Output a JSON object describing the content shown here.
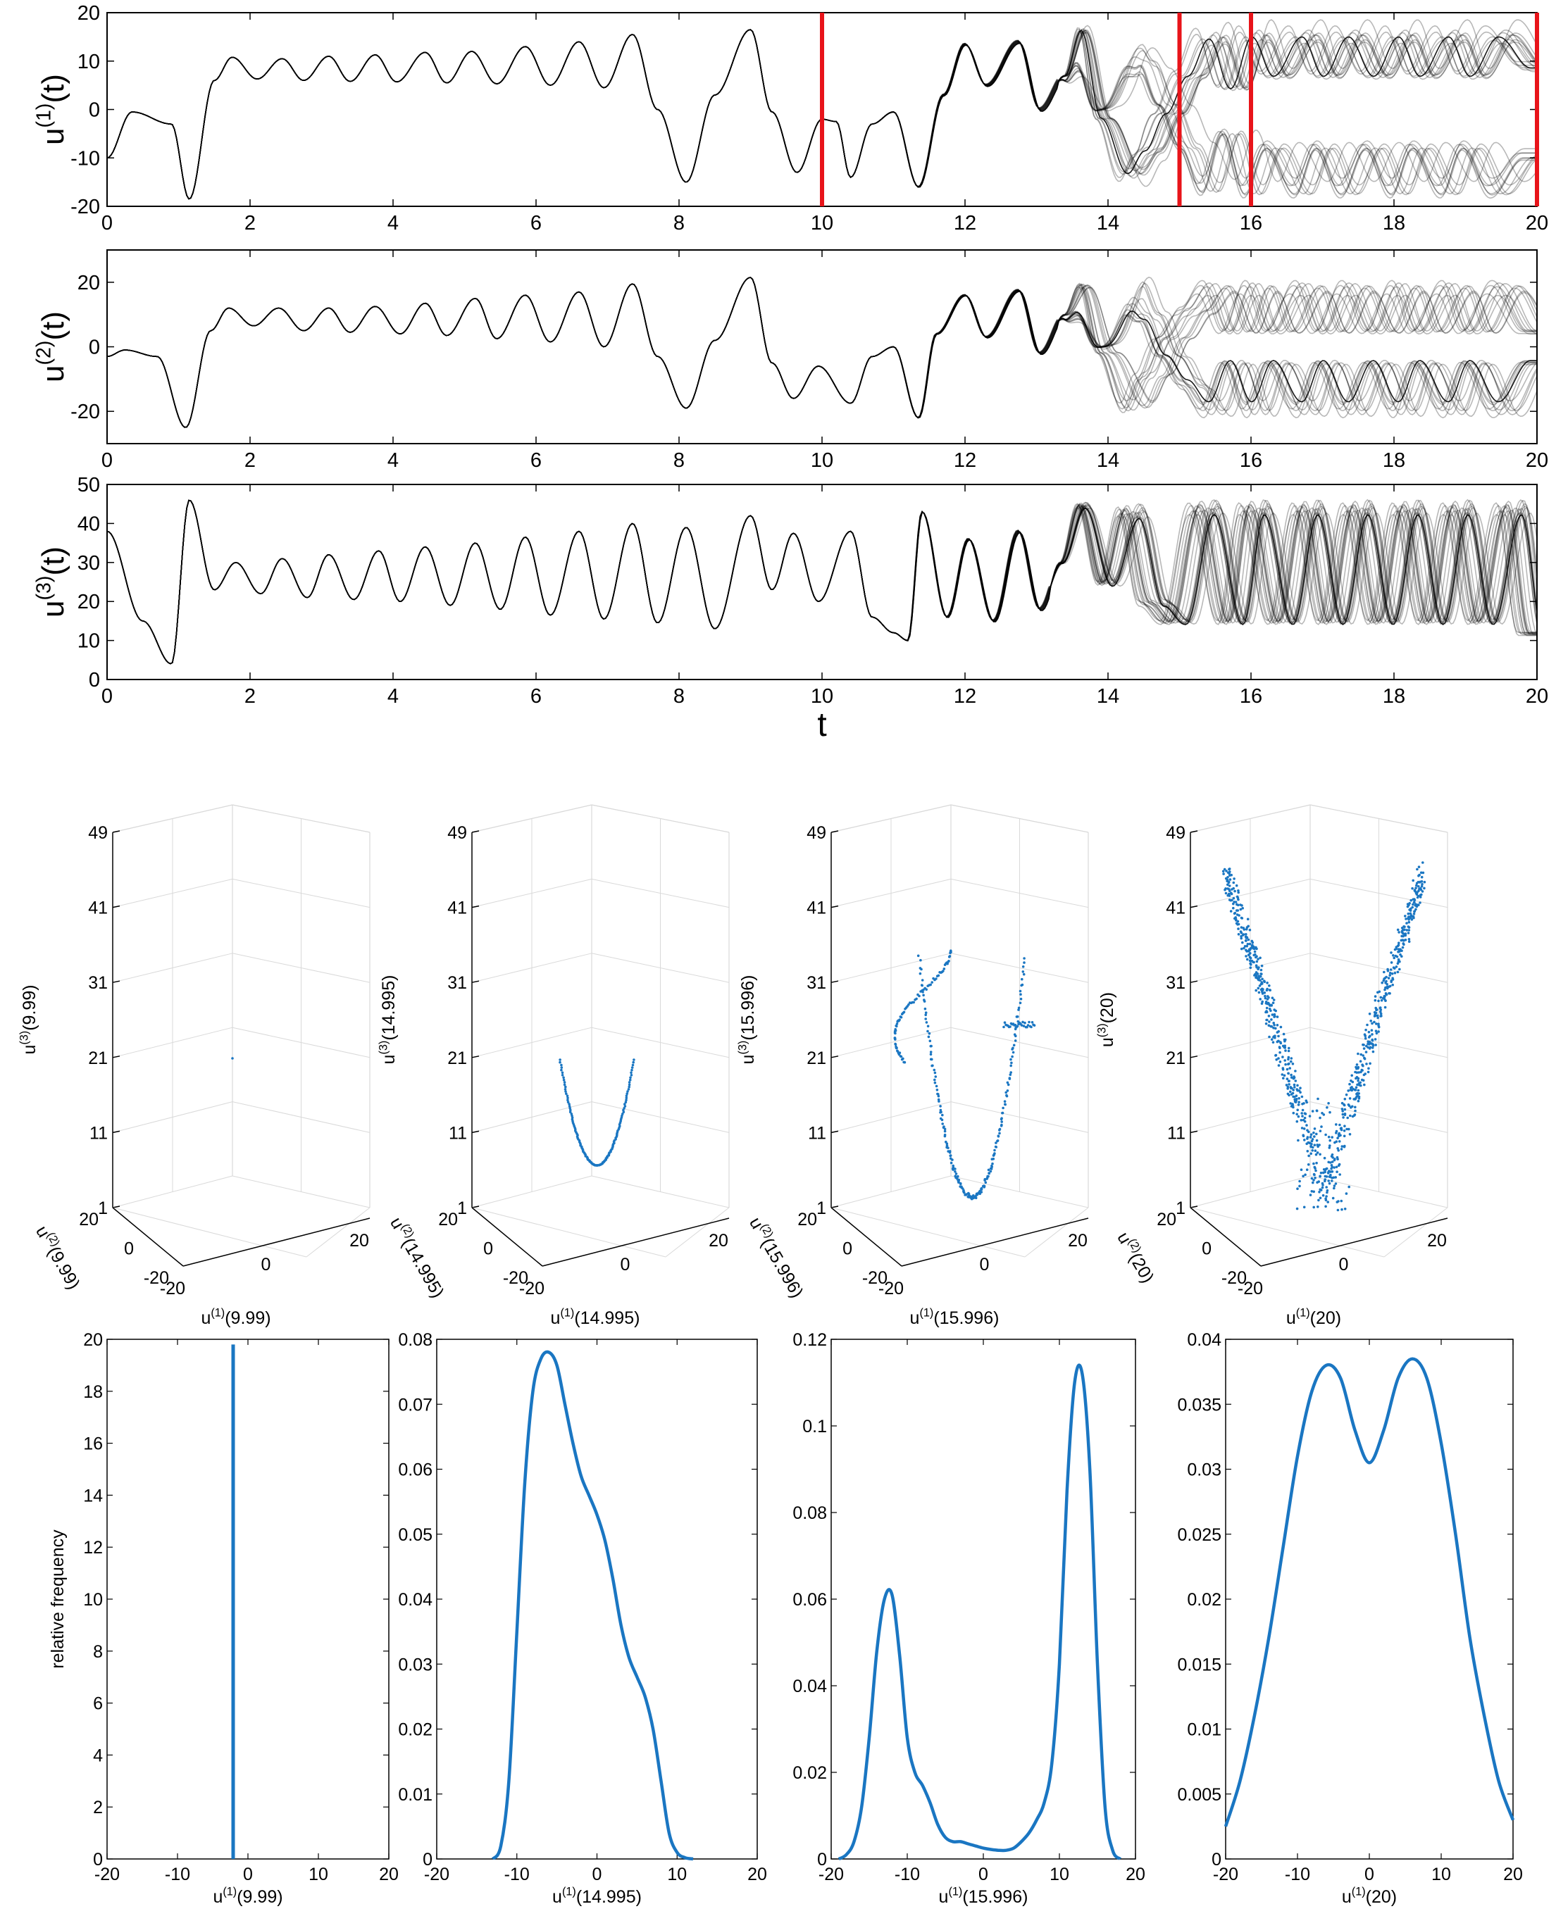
{
  "colors": {
    "trajectory": "#000000",
    "marker": "#e8141a",
    "scatter": "#1a76c2",
    "density": "#1a76c2",
    "axis": "#000000",
    "grid3d": "#d9d9d9"
  },
  "marker_times": [
    10,
    15,
    16,
    20
  ],
  "chart_data": [
    {
      "id": "ts-u1",
      "type": "line",
      "description_visual": "ensemble of trajectories, spread increases after t ~ 13",
      "ylabel_base": "u",
      "ylabel_sup": "(1)",
      "ylabel_tail": "(t)",
      "xlim": [
        0,
        20
      ],
      "ylim": [
        -20,
        20
      ],
      "xticks": [
        "0",
        "2",
        "4",
        "6",
        "8",
        "10",
        "12",
        "14",
        "16",
        "18",
        "20"
      ],
      "yticks": [
        "-20",
        "-10",
        "0",
        "10",
        "20"
      ],
      "peaks": [
        [
          0,
          -10
        ],
        [
          0.35,
          -0.5
        ],
        [
          0.9,
          -3
        ],
        [
          1.15,
          -18.5
        ],
        [
          1.5,
          6
        ],
        [
          1.75,
          10.8
        ],
        [
          2.1,
          6.3
        ],
        [
          2.45,
          10.5
        ],
        [
          2.75,
          6
        ],
        [
          3.1,
          11
        ],
        [
          3.4,
          5.8
        ],
        [
          3.75,
          11.3
        ],
        [
          4.05,
          5.7
        ],
        [
          4.45,
          11.8
        ],
        [
          4.75,
          5.5
        ],
        [
          5.1,
          12
        ],
        [
          5.45,
          5.3
        ],
        [
          5.85,
          13
        ],
        [
          6.2,
          5
        ],
        [
          6.6,
          14
        ],
        [
          6.95,
          4.5
        ],
        [
          7.35,
          15.5
        ],
        [
          7.7,
          0
        ],
        [
          8.1,
          -15
        ],
        [
          8.5,
          3
        ],
        [
          9.0,
          16.5
        ],
        [
          9.3,
          -0.5
        ],
        [
          9.65,
          -13
        ],
        [
          10.0,
          -2
        ],
        [
          10.2,
          -2.5
        ],
        [
          10.4,
          -14
        ],
        [
          10.7,
          -3
        ],
        [
          11.0,
          -0.5
        ],
        [
          11.35,
          -16
        ],
        [
          11.7,
          3
        ],
        [
          12.0,
          13.5
        ],
        [
          12.3,
          5
        ],
        [
          12.75,
          14
        ],
        [
          13.05,
          0
        ],
        [
          13.4,
          7
        ],
        [
          13.65,
          17
        ],
        [
          13.95,
          -2
        ],
        [
          14.35,
          -15
        ],
        [
          14.6,
          -10
        ],
        [
          14.9,
          -1
        ],
        [
          15.2,
          8
        ],
        [
          15.5,
          17
        ],
        [
          15.8,
          5
        ],
        [
          16.1,
          17.5
        ],
        [
          16.4,
          8
        ],
        [
          16.8,
          17.5
        ],
        [
          17.1,
          8
        ],
        [
          17.45,
          17.5
        ],
        [
          17.8,
          8
        ],
        [
          18.15,
          17.5
        ],
        [
          18.45,
          8
        ],
        [
          18.85,
          17.5
        ],
        [
          19.15,
          8
        ],
        [
          19.55,
          17.5
        ],
        [
          20,
          10
        ]
      ],
      "spread_start": 13.3,
      "spread_amplitude": 18,
      "marker_lines": true
    },
    {
      "id": "ts-u2",
      "type": "line",
      "ylabel_base": "u",
      "ylabel_sup": "(2)",
      "ylabel_tail": "(t)",
      "xlim": [
        0,
        20
      ],
      "ylim": [
        -30,
        30
      ],
      "xticks": [
        "0",
        "2",
        "4",
        "6",
        "8",
        "10",
        "12",
        "14",
        "16",
        "18",
        "20"
      ],
      "yticks": [
        "-20",
        "0",
        "20"
      ],
      "peaks": [
        [
          0,
          -3
        ],
        [
          0.25,
          -1
        ],
        [
          0.7,
          -3
        ],
        [
          1.1,
          -25
        ],
        [
          1.45,
          5
        ],
        [
          1.7,
          12
        ],
        [
          2.05,
          6.5
        ],
        [
          2.4,
          12
        ],
        [
          2.75,
          5
        ],
        [
          3.1,
          12
        ],
        [
          3.4,
          4.5
        ],
        [
          3.75,
          12.5
        ],
        [
          4.1,
          4
        ],
        [
          4.45,
          13.5
        ],
        [
          4.75,
          3.5
        ],
        [
          5.15,
          15
        ],
        [
          5.45,
          2.5
        ],
        [
          5.85,
          16
        ],
        [
          6.2,
          1.5
        ],
        [
          6.6,
          17
        ],
        [
          6.95,
          0
        ],
        [
          7.35,
          19.5
        ],
        [
          7.7,
          -3
        ],
        [
          8.1,
          -19
        ],
        [
          8.5,
          2
        ],
        [
          9.0,
          21.5
        ],
        [
          9.3,
          -5
        ],
        [
          9.6,
          -16
        ],
        [
          9.95,
          -6
        ],
        [
          10.4,
          -17.5
        ],
        [
          10.7,
          -3
        ],
        [
          11.0,
          0
        ],
        [
          11.35,
          -22
        ],
        [
          11.6,
          4
        ],
        [
          12.0,
          16
        ],
        [
          12.3,
          3
        ],
        [
          12.75,
          17.5
        ],
        [
          13.05,
          -2
        ],
        [
          13.4,
          10
        ],
        [
          13.65,
          19.5
        ],
        [
          13.95,
          -2
        ],
        [
          14.35,
          -20
        ],
        [
          14.6,
          -10
        ],
        [
          14.9,
          3
        ],
        [
          15.2,
          12
        ],
        [
          15.5,
          20
        ],
        [
          15.8,
          5
        ],
        [
          16.1,
          20
        ],
        [
          16.4,
          5
        ],
        [
          16.8,
          20
        ],
        [
          17.1,
          5
        ],
        [
          17.45,
          20
        ],
        [
          17.8,
          5
        ],
        [
          18.15,
          20
        ],
        [
          18.45,
          5
        ],
        [
          18.85,
          20
        ],
        [
          19.15,
          5
        ],
        [
          19.55,
          20
        ],
        [
          20,
          5
        ]
      ],
      "spread_start": 13.3,
      "spread_amplitude": 20,
      "marker_lines": false
    },
    {
      "id": "ts-u3",
      "type": "line",
      "ylabel_base": "u",
      "ylabel_sup": "(3)",
      "ylabel_tail": "(t)",
      "xlabel": "t",
      "xlim": [
        0,
        20
      ],
      "ylim": [
        0,
        50
      ],
      "xticks": [
        "0",
        "2",
        "4",
        "6",
        "8",
        "10",
        "12",
        "14",
        "16",
        "18",
        "20"
      ],
      "yticks": [
        "0",
        "10",
        "20",
        "30",
        "40",
        "50"
      ],
      "peaks": [
        [
          0,
          38
        ],
        [
          0.5,
          15
        ],
        [
          0.9,
          4
        ],
        [
          1.15,
          46
        ],
        [
          1.5,
          23
        ],
        [
          1.8,
          30
        ],
        [
          2.15,
          22
        ],
        [
          2.45,
          31
        ],
        [
          2.8,
          21
        ],
        [
          3.1,
          32
        ],
        [
          3.45,
          20.5
        ],
        [
          3.8,
          33
        ],
        [
          4.1,
          20
        ],
        [
          4.45,
          34
        ],
        [
          4.8,
          19
        ],
        [
          5.15,
          35
        ],
        [
          5.5,
          18
        ],
        [
          5.85,
          36.5
        ],
        [
          6.2,
          16.5
        ],
        [
          6.6,
          38
        ],
        [
          6.95,
          15.5
        ],
        [
          7.35,
          40
        ],
        [
          7.7,
          14.5
        ],
        [
          8.1,
          39
        ],
        [
          8.5,
          13
        ],
        [
          9.0,
          42
        ],
        [
          9.3,
          23
        ],
        [
          9.6,
          37.5
        ],
        [
          9.95,
          20
        ],
        [
          10.4,
          38
        ],
        [
          10.7,
          16
        ],
        [
          11.0,
          12
        ],
        [
          11.2,
          10
        ],
        [
          11.4,
          43
        ],
        [
          11.75,
          16
        ],
        [
          12.05,
          36
        ],
        [
          12.4,
          15
        ],
        [
          12.75,
          38
        ],
        [
          13.05,
          18
        ],
        [
          13.35,
          30
        ],
        [
          13.65,
          45
        ],
        [
          14.0,
          25
        ],
        [
          14.35,
          44
        ],
        [
          14.7,
          20
        ],
        [
          15.0,
          15
        ],
        [
          15.4,
          45
        ],
        [
          15.8,
          15
        ],
        [
          16.1,
          45
        ],
        [
          16.5,
          15
        ],
        [
          16.85,
          45
        ],
        [
          17.2,
          15
        ],
        [
          17.55,
          45
        ],
        [
          17.9,
          15
        ],
        [
          18.25,
          45
        ],
        [
          18.6,
          15
        ],
        [
          18.95,
          45
        ],
        [
          19.3,
          15
        ],
        [
          19.7,
          45
        ],
        [
          20,
          12
        ]
      ],
      "spread_start": 13.2,
      "spread_amplitude": 14,
      "marker_lines": false
    },
    {
      "id": "scatter-1",
      "type": "scatter",
      "xlabel_base": "u",
      "xlabel_sup": "(1)",
      "xlabel_tail": "(9.99)",
      "ylabel_base": "u",
      "ylabel_sup": "(2)",
      "ylabel_tail": "(9.99)",
      "zlabel_base": "u",
      "zlabel_sup": "(3)",
      "zlabel_tail": "(9.99)",
      "zticks": [
        "1",
        "11",
        "21",
        "31",
        "41",
        "49"
      ],
      "xticks": [
        "-20",
        "0",
        "20"
      ],
      "yticks": [
        "20",
        "0",
        "-20"
      ],
      "pattern": "point",
      "points_sample": [
        [
          -1.5,
          -1.5,
          18
        ]
      ]
    },
    {
      "id": "scatter-2",
      "type": "scatter",
      "xlabel_base": "u",
      "xlabel_sup": "(1)",
      "xlabel_tail": "(14.995)",
      "ylabel_base": "u",
      "ylabel_sup": "(2)",
      "ylabel_tail": "(14.995)",
      "zlabel_base": "u",
      "zlabel_sup": "(3)",
      "zlabel_tail": "(14.995)",
      "zticks": [
        "1",
        "11",
        "21",
        "31",
        "41",
        "49"
      ],
      "xticks": [
        "-20",
        "0",
        "20"
      ],
      "yticks": [
        "20",
        "0",
        "-20"
      ],
      "pattern": "arc"
    },
    {
      "id": "scatter-3",
      "type": "scatter",
      "xlabel_base": "u",
      "xlabel_sup": "(1)",
      "xlabel_tail": "(15.996)",
      "ylabel_base": "u",
      "ylabel_sup": "(2)",
      "ylabel_tail": "(15.996)",
      "zlabel_base": "u",
      "zlabel_sup": "(3)",
      "zlabel_tail": "(15.996)",
      "zticks": [
        "1",
        "11",
        "21",
        "31",
        "41",
        "49"
      ],
      "xticks": [
        "-20",
        "0",
        "20"
      ],
      "yticks": [
        "20",
        "0",
        "-20"
      ],
      "pattern": "butterfly-thin"
    },
    {
      "id": "scatter-4",
      "type": "scatter",
      "xlabel_base": "u",
      "xlabel_sup": "(1)",
      "xlabel_tail": "(20)",
      "ylabel_base": "u",
      "ylabel_sup": "(2)",
      "ylabel_tail": "(20)",
      "zlabel_base": "u",
      "zlabel_sup": "(3)",
      "zlabel_tail": "(20)",
      "zticks": [
        "1",
        "11",
        "21",
        "31",
        "41",
        "49"
      ],
      "xticks": [
        "-20",
        "0",
        "20"
      ],
      "yticks": [
        "20",
        "0",
        "-20"
      ],
      "pattern": "butterfly-cloud"
    },
    {
      "id": "density-1",
      "type": "line",
      "xlabel_base": "u",
      "xlabel_sup": "(1)",
      "xlabel_tail": "(9.99)",
      "ylabel": "relative frequency",
      "xlim": [
        -20,
        20
      ],
      "ylim": [
        0,
        20
      ],
      "xticks": [
        "-20",
        "-10",
        "0",
        "10",
        "20"
      ],
      "yticks": [
        "0",
        "2",
        "4",
        "6",
        "8",
        "10",
        "12",
        "14",
        "16",
        "18",
        "20"
      ],
      "spike_x": -2.1,
      "spike_height": 19.8
    },
    {
      "id": "density-2",
      "type": "line",
      "xlabel_base": "u",
      "xlabel_sup": "(1)",
      "xlabel_tail": "(14.995)",
      "xlim": [
        -20,
        20
      ],
      "ylim": [
        0,
        0.08
      ],
      "xticks": [
        "-20",
        "-10",
        "0",
        "10",
        "20"
      ],
      "yticks": [
        "0",
        "0.01",
        "0.02",
        "0.03",
        "0.04",
        "0.05",
        "0.06",
        "0.07",
        "0.08"
      ],
      "x": [
        -13,
        -12,
        -11,
        -10,
        -9,
        -8,
        -7,
        -6,
        -5,
        -4,
        -3,
        -2,
        -1,
        0,
        1,
        2,
        3,
        4,
        5,
        6,
        7,
        8,
        9,
        10,
        11,
        12
      ],
      "y": [
        0,
        0.002,
        0.012,
        0.035,
        0.058,
        0.072,
        0.077,
        0.078,
        0.076,
        0.07,
        0.064,
        0.059,
        0.056,
        0.053,
        0.049,
        0.043,
        0.036,
        0.031,
        0.028,
        0.025,
        0.02,
        0.012,
        0.004,
        0.001,
        0.0002,
        0
      ]
    },
    {
      "id": "density-3",
      "type": "line",
      "xlabel_base": "u",
      "xlabel_sup": "(1)",
      "xlabel_tail": "(15.996)",
      "xlim": [
        -20,
        20
      ],
      "ylim": [
        0,
        0.12
      ],
      "xticks": [
        "-20",
        "-10",
        "0",
        "10",
        "20"
      ],
      "yticks": [
        "0",
        "0.02",
        "0.04",
        "0.06",
        "0.08",
        "0.1",
        "0.12"
      ],
      "x": [
        -19,
        -18,
        -17,
        -16,
        -15,
        -14,
        -13,
        -12,
        -11,
        -10,
        -9,
        -8,
        -7,
        -6,
        -5,
        -4,
        -3,
        -2,
        -1,
        0,
        1,
        2,
        3,
        4,
        5,
        6,
        7,
        8,
        9,
        10,
        11,
        12,
        13,
        14,
        15,
        16,
        17,
        18
      ],
      "y": [
        0,
        0.001,
        0.004,
        0.012,
        0.028,
        0.048,
        0.06,
        0.061,
        0.047,
        0.028,
        0.02,
        0.017,
        0.013,
        0.008,
        0.005,
        0.004,
        0.004,
        0.0035,
        0.003,
        0.0025,
        0.0022,
        0.002,
        0.002,
        0.0025,
        0.004,
        0.006,
        0.009,
        0.013,
        0.022,
        0.045,
        0.085,
        0.11,
        0.112,
        0.09,
        0.045,
        0.012,
        0.002,
        0
      ]
    },
    {
      "id": "density-4",
      "type": "line",
      "xlabel_base": "u",
      "xlabel_sup": "(1)",
      "xlabel_tail": "(20)",
      "xlim": [
        -20,
        20
      ],
      "ylim": [
        0,
        0.04
      ],
      "xticks": [
        "-20",
        "-10",
        "0",
        "10",
        "20"
      ],
      "yticks": [
        "0",
        "0.005",
        "0.01",
        "0.015",
        "0.02",
        "0.025",
        "0.03",
        "0.035",
        "0.04"
      ],
      "x": [
        -20,
        -18,
        -16,
        -14,
        -12,
        -10,
        -8,
        -6,
        -4,
        -2,
        0,
        2,
        4,
        6,
        8,
        10,
        12,
        14,
        16,
        18,
        20
      ],
      "y": [
        0.0025,
        0.006,
        0.011,
        0.017,
        0.024,
        0.031,
        0.036,
        0.038,
        0.037,
        0.033,
        0.0305,
        0.033,
        0.037,
        0.0385,
        0.037,
        0.032,
        0.025,
        0.017,
        0.011,
        0.006,
        0.003
      ]
    }
  ]
}
